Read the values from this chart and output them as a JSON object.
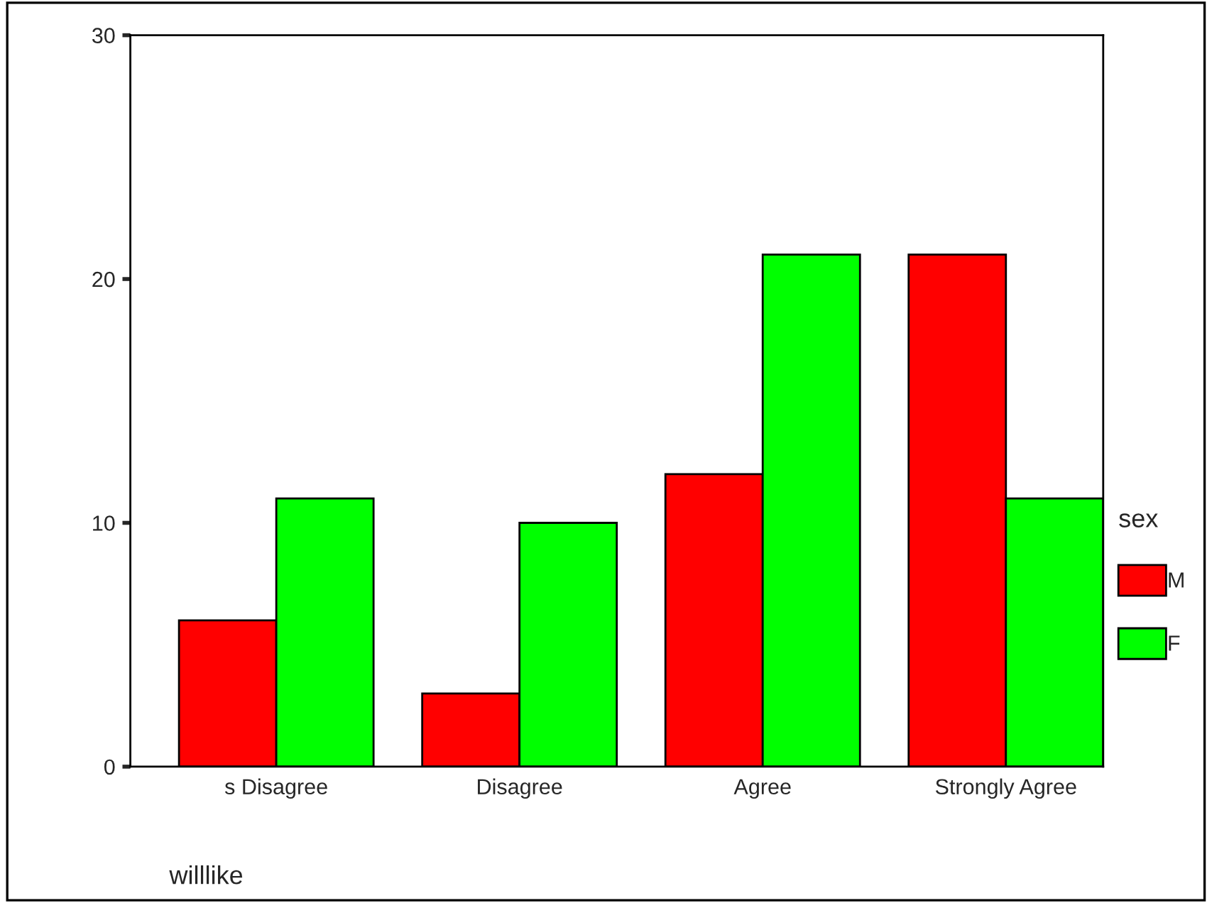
{
  "chart_data": {
    "type": "bar",
    "xlabel": "willlike",
    "legend_title": "sex",
    "categories": [
      "s Disagree",
      "Disagree",
      "Agree",
      "Strongly Agree"
    ],
    "series": [
      {
        "name": "M",
        "color": "#ff0000",
        "values": [
          6,
          3,
          12,
          21
        ]
      },
      {
        "name": "F",
        "color": "#00ff00",
        "values": [
          11,
          10,
          21,
          11
        ]
      }
    ],
    "ylim": [
      0,
      30
    ],
    "yticks": [
      0,
      10,
      20,
      30
    ],
    "grid": false,
    "legend": "right"
  }
}
